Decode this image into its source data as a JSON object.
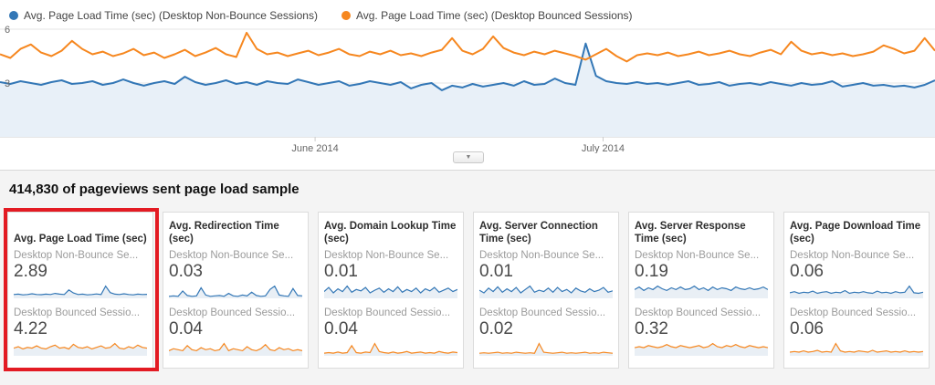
{
  "colors": {
    "blue": "#3377b6",
    "orange": "#f6871f",
    "blue_fill": "#e8f0f8",
    "spark_fill": "#e9eff5",
    "grid": "#e6e6e6",
    "axis": "#cccccc",
    "highlight": "#e31b23"
  },
  "icons": {
    "collapse_chevron": "▼"
  },
  "legend": [
    {
      "label": "Avg. Page Load Time (sec) (Desktop Non-Bounce Sessions)",
      "color": "blue"
    },
    {
      "label": "Avg. Page Load Time (sec) (Desktop Bounced Sessions)",
      "color": "orange"
    }
  ],
  "section": {
    "title": "414,830 of pageviews sent page load sample"
  },
  "cards": [
    {
      "title": "Avg. Page Load Time (sec)",
      "highlighted": true,
      "rows": [
        {
          "label": "Desktop Non-Bounce Se...",
          "value": "2.89",
          "series": "blue",
          "spark": [
            1,
            1.1,
            0.9,
            1,
            1.2,
            1,
            0.95,
            1.1,
            1,
            1.3,
            1.1,
            1,
            2.2,
            1.4,
            1,
            1.1,
            0.9,
            1,
            1.15,
            1,
            3.2,
            1.5,
            1.1,
            1,
            1.2,
            1,
            0.9,
            1.1,
            1,
            1.05
          ]
        },
        {
          "label": "Desktop Bounced Sessio...",
          "value": "4.22",
          "series": "orange",
          "spark": [
            1,
            1.2,
            0.9,
            1.1,
            1,
            1.3,
            1,
            0.9,
            1.2,
            1.4,
            1,
            1.1,
            0.9,
            1.5,
            1.1,
            1,
            1.2,
            0.9,
            1.1,
            1.3,
            1,
            1.1,
            1.6,
            1,
            0.9,
            1.2,
            1,
            1.4,
            1.1,
            1
          ]
        }
      ]
    },
    {
      "title": "Avg. Redirection Time (sec)",
      "highlighted": false,
      "rows": [
        {
          "label": "Desktop Non-Bounce Se...",
          "value": "0.03",
          "series": "blue",
          "spark": [
            0.5,
            0.6,
            0.5,
            1.8,
            0.7,
            0.5,
            0.6,
            2.6,
            0.8,
            0.5,
            0.6,
            0.7,
            0.5,
            1.2,
            0.6,
            0.5,
            0.8,
            0.6,
            1.5,
            0.7,
            0.5,
            0.6,
            2.2,
            3,
            0.8,
            0.6,
            0.5,
            2.4,
            0.7,
            0.6
          ]
        },
        {
          "label": "Desktop Bounced Sessio...",
          "value": "0.04",
          "series": "orange",
          "spark": [
            0.5,
            0.7,
            0.6,
            0.5,
            1,
            0.6,
            0.5,
            0.8,
            0.6,
            0.7,
            0.5,
            0.6,
            1.2,
            0.5,
            0.7,
            0.6,
            0.5,
            0.9,
            0.6,
            0.5,
            0.7,
            1.1,
            0.6,
            0.5,
            0.8,
            0.6,
            0.7,
            0.5,
            0.6,
            0.5
          ]
        }
      ]
    },
    {
      "title": "Avg. Domain Lookup Time (sec)",
      "highlighted": false,
      "rows": [
        {
          "label": "Desktop Non-Bounce Se...",
          "value": "0.01",
          "series": "blue",
          "spark": [
            1,
            1.6,
            0.8,
            1.4,
            1,
            1.8,
            0.9,
            1.3,
            1.1,
            1.6,
            0.8,
            1.2,
            1.5,
            0.9,
            1.4,
            1,
            1.7,
            0.9,
            1.3,
            1,
            1.5,
            0.8,
            1.4,
            1.1,
            1.6,
            0.9,
            1.2,
            1.5,
            1,
            1.3
          ]
        },
        {
          "label": "Desktop Bounced Sessio...",
          "value": "0.04",
          "series": "orange",
          "spark": [
            0.5,
            0.6,
            0.5,
            0.7,
            0.5,
            0.6,
            1.9,
            0.6,
            0.5,
            0.7,
            0.6,
            2.3,
            0.8,
            0.6,
            0.5,
            0.7,
            0.5,
            0.6,
            0.8,
            0.5,
            0.6,
            0.7,
            0.5,
            0.6,
            0.5,
            0.8,
            0.6,
            0.5,
            0.7,
            0.6
          ]
        }
      ]
    },
    {
      "title": "Avg. Server Connection Time (sec)",
      "highlighted": false,
      "rows": [
        {
          "label": "Desktop Non-Bounce Se...",
          "value": "0.01",
          "series": "blue",
          "spark": [
            1.2,
            0.8,
            1.5,
            1,
            1.7,
            0.9,
            1.4,
            1,
            1.6,
            0.8,
            1.3,
            1.8,
            0.9,
            1.2,
            1,
            1.5,
            0.9,
            1.6,
            1,
            1.3,
            0.8,
            1.5,
            1.1,
            0.9,
            1.4,
            1,
            1.2,
            1.6,
            0.9,
            1.1
          ]
        },
        {
          "label": "Desktop Bounced Sessio...",
          "value": "0.02",
          "series": "orange",
          "spark": [
            0.5,
            0.6,
            0.5,
            0.6,
            0.7,
            0.5,
            0.6,
            0.5,
            0.7,
            0.6,
            0.5,
            0.6,
            0.5,
            2.4,
            0.7,
            0.6,
            0.5,
            0.6,
            0.7,
            0.5,
            0.6,
            0.5,
            0.6,
            0.7,
            0.5,
            0.6,
            0.5,
            0.7,
            0.6,
            0.5
          ]
        }
      ]
    },
    {
      "title": "Avg. Server Response Time (sec)",
      "highlighted": false,
      "rows": [
        {
          "label": "Desktop Non-Bounce Se...",
          "value": "0.19",
          "series": "blue",
          "spark": [
            1,
            1.3,
            0.9,
            1.2,
            1,
            1.4,
            1.1,
            0.9,
            1.2,
            1,
            1.3,
            1,
            1.1,
            1.4,
            1,
            1.2,
            0.9,
            1.3,
            1,
            1.2,
            1.1,
            0.9,
            1.3,
            1.1,
            1,
            1.2,
            1,
            1.1,
            1.3,
            1
          ]
        },
        {
          "label": "Desktop Bounced Sessio...",
          "value": "0.32",
          "series": "orange",
          "spark": [
            0.8,
            0.9,
            0.8,
            1,
            0.9,
            0.8,
            0.9,
            1.1,
            0.9,
            0.8,
            1,
            0.9,
            0.8,
            0.9,
            1,
            0.8,
            0.9,
            1.2,
            0.9,
            0.8,
            1,
            0.9,
            1.1,
            0.9,
            0.8,
            1,
            0.9,
            0.8,
            0.9,
            0.8
          ]
        }
      ]
    },
    {
      "title": "Avg. Page Download Time (sec)",
      "highlighted": false,
      "rows": [
        {
          "label": "Desktop Non-Bounce Se...",
          "value": "0.06",
          "series": "blue",
          "spark": [
            1,
            1.2,
            0.9,
            1.1,
            1,
            1.3,
            0.9,
            1.1,
            1.2,
            0.9,
            1.1,
            1,
            1.4,
            0.9,
            1.1,
            1,
            1.2,
            1,
            0.9,
            1.3,
            1,
            1.1,
            0.9,
            1.2,
            1,
            1.1,
            2.2,
            1,
            0.9,
            1.1
          ]
        },
        {
          "label": "Desktop Bounced Sessio...",
          "value": "0.06",
          "series": "orange",
          "spark": [
            0.6,
            0.7,
            0.6,
            0.8,
            0.6,
            0.7,
            0.9,
            0.6,
            0.7,
            0.6,
            2,
            0.8,
            0.6,
            0.7,
            0.6,
            0.8,
            0.7,
            0.6,
            0.9,
            0.6,
            0.7,
            0.8,
            0.6,
            0.7,
            0.6,
            0.8,
            0.6,
            0.7,
            0.6,
            0.7
          ]
        }
      ]
    }
  ],
  "chart_data": {
    "type": "line",
    "timeline": {
      "ymin": 0,
      "ymax": 6,
      "y_ticks": [
        {
          "value": 6,
          "label": "6"
        },
        {
          "value": 3,
          "label": "3"
        }
      ],
      "gridlines": [
        3,
        6
      ],
      "x_ticks": [
        {
          "frac": 0.337,
          "label": "June 2014"
        },
        {
          "frac": 0.645,
          "label": "July 2014"
        }
      ],
      "legend_position": "top-left",
      "series": [
        {
          "name": "Avg. Page Load Time (sec) (Desktop Non-Bounce Sessions)",
          "color": "blue",
          "fill": true,
          "values": [
            3.05,
            2.95,
            3.1,
            3.0,
            2.9,
            3.05,
            3.15,
            2.95,
            3.0,
            3.1,
            2.9,
            3.0,
            3.2,
            3.0,
            2.85,
            3.0,
            3.1,
            2.95,
            3.35,
            3.05,
            2.9,
            3.0,
            3.15,
            2.95,
            3.05,
            2.9,
            3.1,
            3.0,
            2.95,
            3.2,
            3.05,
            2.9,
            3.0,
            3.1,
            2.85,
            2.95,
            3.1,
            3.0,
            2.9,
            3.05,
            2.7,
            2.9,
            3.0,
            2.6,
            2.85,
            2.75,
            2.95,
            2.8,
            2.9,
            3.0,
            2.85,
            3.1,
            2.9,
            2.95,
            3.25,
            3.0,
            2.9,
            5.2,
            3.4,
            3.1,
            3.0,
            2.95,
            3.05,
            2.95,
            3.0,
            2.9,
            3.0,
            3.1,
            2.9,
            2.95,
            3.05,
            2.85,
            2.95,
            3.0,
            2.9,
            3.05,
            2.95,
            2.85,
            3.0,
            2.9,
            2.95,
            3.1,
            2.8,
            2.9,
            3.0,
            2.85,
            2.9,
            2.8,
            2.85,
            2.75,
            2.9,
            3.15
          ]
        },
        {
          "name": "Avg. Page Load Time (sec) (Desktop Bounced Sessions)",
          "color": "orange",
          "fill": false,
          "values": [
            4.6,
            4.4,
            4.9,
            5.15,
            4.7,
            4.5,
            4.8,
            5.35,
            4.9,
            4.6,
            4.75,
            4.5,
            4.65,
            4.9,
            4.55,
            4.7,
            4.4,
            4.6,
            4.85,
            4.5,
            4.7,
            4.95,
            4.6,
            4.45,
            5.8,
            4.9,
            4.6,
            4.7,
            4.5,
            4.65,
            4.8,
            4.55,
            4.7,
            4.9,
            4.6,
            4.5,
            4.75,
            4.6,
            4.8,
            4.55,
            4.65,
            4.5,
            4.7,
            4.85,
            5.5,
            4.8,
            4.6,
            4.9,
            5.6,
            4.95,
            4.7,
            4.55,
            4.75,
            4.6,
            4.8,
            4.65,
            4.5,
            4.3,
            4.6,
            4.9,
            4.5,
            4.2,
            4.55,
            4.65,
            4.55,
            4.7,
            4.5,
            4.6,
            4.75,
            4.55,
            4.65,
            4.8,
            4.6,
            4.5,
            4.7,
            4.85,
            4.6,
            5.3,
            4.8,
            4.6,
            4.7,
            4.55,
            4.65,
            4.5,
            4.6,
            4.75,
            5.1,
            4.9,
            4.65,
            4.8,
            5.5,
            4.8
          ]
        }
      ]
    }
  }
}
